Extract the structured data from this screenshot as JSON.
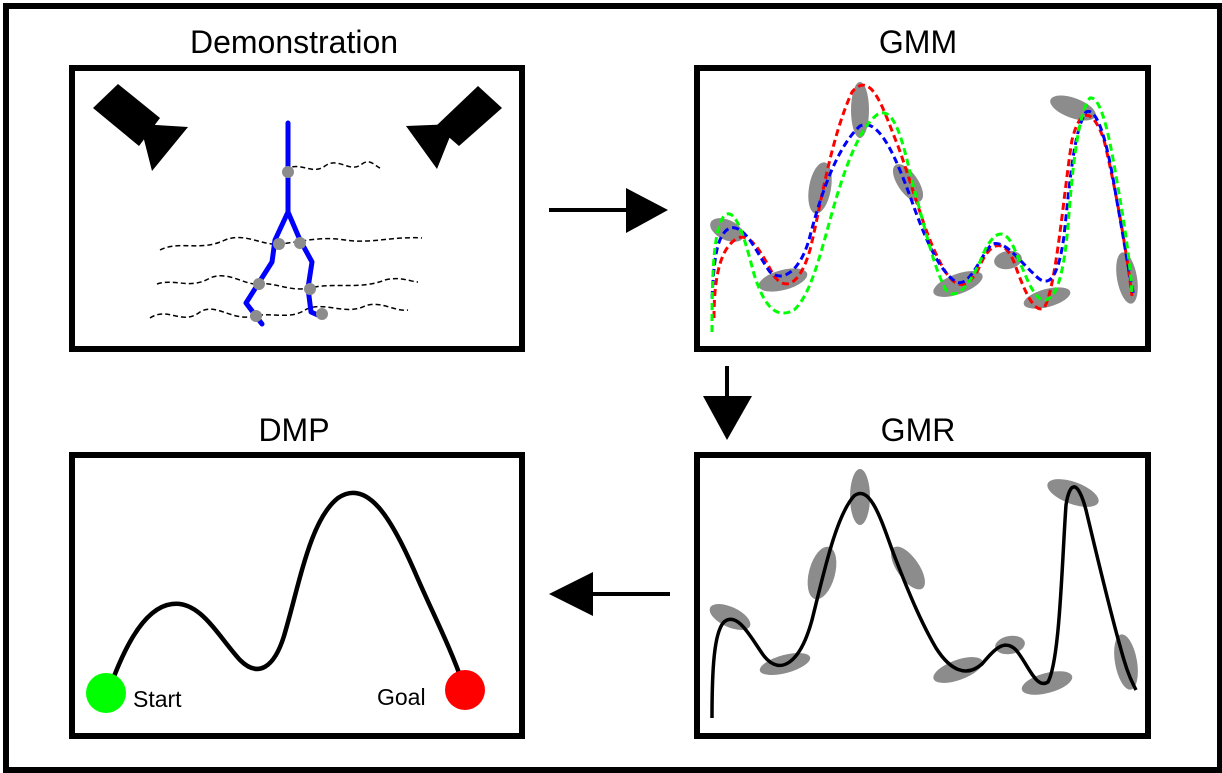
{
  "panels": {
    "demonstration": {
      "title": "Demonstration"
    },
    "gmm": {
      "title": "GMM"
    },
    "gmr": {
      "title": "GMR"
    },
    "dmp": {
      "title": "DMP",
      "start_label": "Start",
      "goal_label": "Goal"
    }
  },
  "colors": {
    "robot_arm": "#0000ff",
    "trajectory_red": "#ff0000",
    "trajectory_blue": "#0000ff",
    "trajectory_green": "#00ff00",
    "gaussian": "#8c8c8c",
    "start": "#00ff00",
    "goal": "#ff0000"
  },
  "icons": [
    "camera-icon",
    "camera-icon",
    "arrow-right-icon",
    "arrow-down-icon",
    "arrow-left-icon"
  ]
}
